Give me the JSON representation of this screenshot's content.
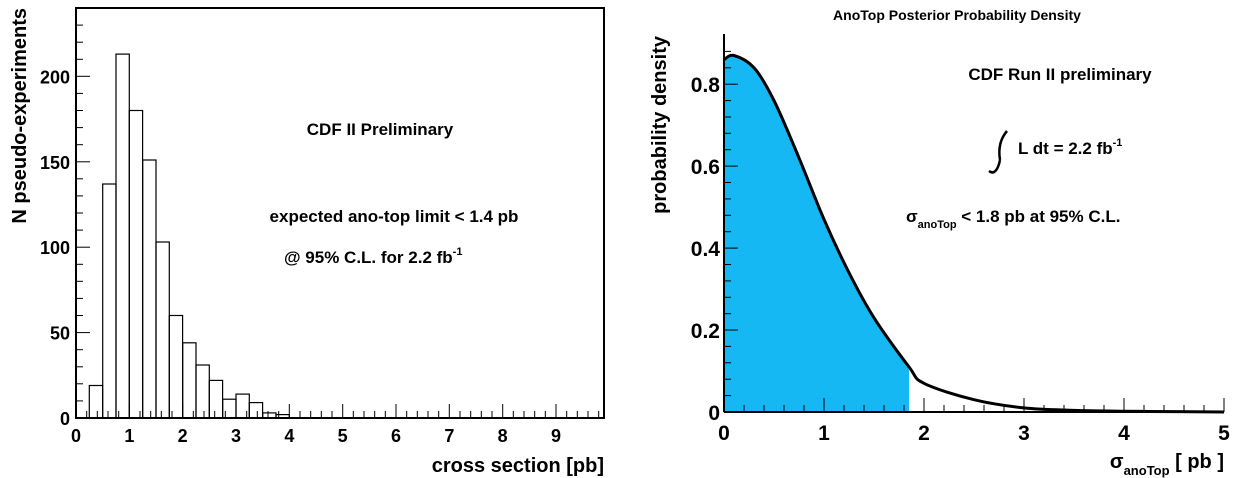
{
  "chart_data": [
    {
      "type": "bar",
      "subtype": "histogram",
      "title": "",
      "xlabel": "cross section [pb]",
      "ylabel": "N pseudo-experiments",
      "xlim": [
        0,
        9.9
      ],
      "ylim": [
        0,
        240
      ],
      "x_ticks": [
        "0",
        "1",
        "2",
        "3",
        "4",
        "5",
        "6",
        "7",
        "8",
        "9"
      ],
      "y_ticks": [
        "0",
        "50",
        "100",
        "150",
        "200"
      ],
      "bin_width": 0.25,
      "bin_edges_start": 0.25,
      "values": [
        19,
        137,
        213,
        180,
        151,
        103,
        60,
        44,
        31,
        22,
        11,
        14,
        9,
        3,
        2,
        0
      ],
      "annotations": {
        "label": "CDF II Preliminary",
        "line1": "expected ano-top limit < 1.4 pb",
        "line2_prefix": "@ 95% C.L. for 2.2 fb",
        "line2_sup": "-1"
      }
    },
    {
      "type": "area",
      "title": "AnoTop Posterior Probability Density",
      "xlabel": "σ",
      "xlabel_sub": "anoTop",
      "xlabel_suffix": " [ pb ]",
      "ylabel": "probability density",
      "xlim": [
        0,
        5
      ],
      "ylim": [
        0,
        0.92
      ],
      "x_ticks": [
        "0",
        "1",
        "2",
        "3",
        "4",
        "5"
      ],
      "y_ticks": [
        "0",
        "0.2",
        "0.4",
        "0.6",
        "0.8"
      ],
      "series": [
        {
          "x": [
            0,
            0.1,
            0.3,
            0.5,
            0.75,
            1.0,
            1.25,
            1.5,
            1.85,
            2.0,
            2.5,
            3.0,
            3.5,
            4.0,
            4.5,
            5.0
          ],
          "y": [
            0.86,
            0.87,
            0.84,
            0.76,
            0.62,
            0.47,
            0.34,
            0.23,
            0.11,
            0.07,
            0.03,
            0.01,
            0.004,
            0.002,
            0.001,
            0.0
          ]
        }
      ],
      "shaded_until": 1.85,
      "fill_color": "#16b8f3",
      "annotations": {
        "label": "CDF Run II preliminary",
        "lumi_prefix": "L dt = 2.2 fb",
        "lumi_sup": "-1",
        "limit_symbol": "σ",
        "limit_sub": "anoTop",
        "limit_suffix": " < 1.8 pb at 95% C.L."
      }
    }
  ]
}
